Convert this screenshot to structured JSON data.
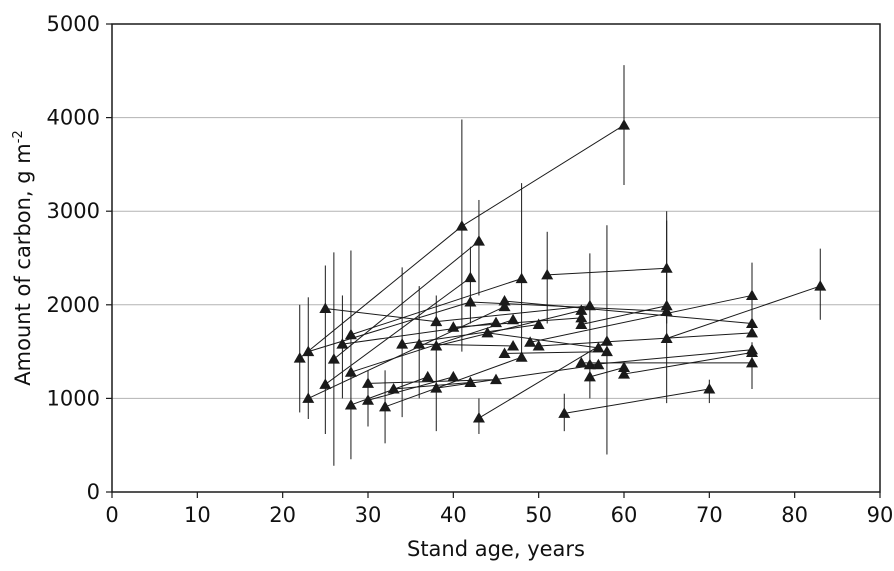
{
  "chart_data": {
    "type": "scatter",
    "title": "",
    "xlabel": "Stand age, years",
    "ylabel": "Amount of carbon, g m",
    "ylabel_superscript": "-2",
    "xlim": [
      0,
      90
    ],
    "ylim": [
      0,
      5000
    ],
    "x_ticks": [
      "0",
      "10",
      "20",
      "30",
      "40",
      "50",
      "60",
      "70",
      "80",
      "90"
    ],
    "y_ticks": [
      "0",
      "1000",
      "2000",
      "3000",
      "4000",
      "5000"
    ],
    "grid": "horizontal",
    "legend": "none",
    "marker": "triangle",
    "colors": {
      "marks": "#1a1a1a",
      "grid": "#b3b3b3",
      "background": "#ffffff"
    },
    "points": [
      {
        "x": 22,
        "y": 1430,
        "err_low": 850,
        "err_high": 2000
      },
      {
        "x": 23,
        "y": 1000,
        "err_low": 780,
        "err_high": 2080
      },
      {
        "x": 23,
        "y": 1500
      },
      {
        "x": 25,
        "y": 1960,
        "err_low": 620,
        "err_high": 2420
      },
      {
        "x": 25,
        "y": 1150
      },
      {
        "x": 26,
        "y": 1420,
        "err_low": 280,
        "err_high": 2560
      },
      {
        "x": 27,
        "y": 1580,
        "err_low": 1000,
        "err_high": 2100
      },
      {
        "x": 28,
        "y": 1680,
        "err_low": 350,
        "err_high": 2580
      },
      {
        "x": 28,
        "y": 1280
      },
      {
        "x": 28,
        "y": 930
      },
      {
        "x": 30,
        "y": 980,
        "err_low": 700,
        "err_high": 1300
      },
      {
        "x": 30,
        "y": 1160
      },
      {
        "x": 32,
        "y": 910,
        "err_low": 520,
        "err_high": 1300
      },
      {
        "x": 33,
        "y": 1100
      },
      {
        "x": 34,
        "y": 1580,
        "err_low": 800,
        "err_high": 2400
      },
      {
        "x": 36,
        "y": 1580,
        "err_low": 1000,
        "err_high": 2200
      },
      {
        "x": 37,
        "y": 1230
      },
      {
        "x": 38,
        "y": 1820,
        "err_low": 650,
        "err_high": 2100
      },
      {
        "x": 38,
        "y": 1560
      },
      {
        "x": 38,
        "y": 1110
      },
      {
        "x": 40,
        "y": 1760
      },
      {
        "x": 40,
        "y": 1230
      },
      {
        "x": 41,
        "y": 2840,
        "err_low": 1500,
        "err_high": 3980
      },
      {
        "x": 42,
        "y": 2290,
        "err_low": 1800,
        "err_high": 2620
      },
      {
        "x": 42,
        "y": 2030
      },
      {
        "x": 42,
        "y": 1170
      },
      {
        "x": 43,
        "y": 2680,
        "err_low": 2100,
        "err_high": 3120
      },
      {
        "x": 43,
        "y": 790,
        "err_low": 620,
        "err_high": 1000
      },
      {
        "x": 44,
        "y": 1700
      },
      {
        "x": 45,
        "y": 1810
      },
      {
        "x": 45,
        "y": 1200
      },
      {
        "x": 46,
        "y": 2040
      },
      {
        "x": 46,
        "y": 1980
      },
      {
        "x": 46,
        "y": 1480
      },
      {
        "x": 47,
        "y": 1840
      },
      {
        "x": 47,
        "y": 1560
      },
      {
        "x": 48,
        "y": 2280,
        "err_low": 1400,
        "err_high": 3300
      },
      {
        "x": 48,
        "y": 1440
      },
      {
        "x": 49,
        "y": 1600
      },
      {
        "x": 50,
        "y": 1790
      },
      {
        "x": 50,
        "y": 1560
      },
      {
        "x": 51,
        "y": 2320,
        "err_low": 1800,
        "err_high": 2780
      },
      {
        "x": 53,
        "y": 840,
        "err_low": 650,
        "err_high": 1050
      },
      {
        "x": 55,
        "y": 1940
      },
      {
        "x": 55,
        "y": 1860
      },
      {
        "x": 55,
        "y": 1790
      },
      {
        "x": 55,
        "y": 1380
      },
      {
        "x": 56,
        "y": 1990,
        "err_low": 1000,
        "err_high": 2550
      },
      {
        "x": 56,
        "y": 1360
      },
      {
        "x": 56,
        "y": 1230
      },
      {
        "x": 57,
        "y": 1540
      },
      {
        "x": 57,
        "y": 1360
      },
      {
        "x": 58,
        "y": 1610,
        "err_low": 400,
        "err_high": 2850
      },
      {
        "x": 58,
        "y": 1500
      },
      {
        "x": 60,
        "y": 3920,
        "err_low": 3280,
        "err_high": 4560
      },
      {
        "x": 60,
        "y": 1330
      },
      {
        "x": 60,
        "y": 1260
      },
      {
        "x": 65,
        "y": 2390,
        "err_low": 1800,
        "err_high": 2900
      },
      {
        "x": 65,
        "y": 1990
      },
      {
        "x": 65,
        "y": 1930
      },
      {
        "x": 65,
        "y": 1640,
        "err_low": 950,
        "err_high": 3000
      },
      {
        "x": 70,
        "y": 1100,
        "err_low": 950,
        "err_high": 1200
      },
      {
        "x": 75,
        "y": 2100,
        "err_low": 1850,
        "err_high": 2450
      },
      {
        "x": 75,
        "y": 1800
      },
      {
        "x": 75,
        "y": 1700
      },
      {
        "x": 75,
        "y": 1520
      },
      {
        "x": 75,
        "y": 1490
      },
      {
        "x": 75,
        "y": 1380,
        "err_low": 1100,
        "err_high": 1600
      },
      {
        "x": 83,
        "y": 2200,
        "err_low": 1840,
        "err_high": 2600
      }
    ],
    "segments": [
      [
        [
          23,
          1500
        ],
        [
          42,
          2030
        ]
      ],
      [
        [
          42,
          2030
        ],
        [
          65,
          1930
        ]
      ],
      [
        [
          22,
          1430
        ],
        [
          41,
          2840
        ]
      ],
      [
        [
          23,
          1000
        ],
        [
          46,
          1980
        ]
      ],
      [
        [
          25,
          1960
        ],
        [
          38,
          1820
        ]
      ],
      [
        [
          25,
          1150
        ],
        [
          42,
          2290
        ]
      ],
      [
        [
          26,
          1420
        ],
        [
          43,
          2680
        ]
      ],
      [
        [
          27,
          1580
        ],
        [
          45,
          1810
        ]
      ],
      [
        [
          28,
          1680
        ],
        [
          48,
          2280
        ]
      ],
      [
        [
          28,
          1280
        ],
        [
          47,
          1840
        ]
      ],
      [
        [
          28,
          930
        ],
        [
          37,
          1230
        ]
      ],
      [
        [
          30,
          980
        ],
        [
          40,
          1230
        ]
      ],
      [
        [
          30,
          1160
        ],
        [
          45,
          1200
        ]
      ],
      [
        [
          32,
          910
        ],
        [
          48,
          1440
        ]
      ],
      [
        [
          33,
          1100
        ],
        [
          42,
          1170
        ]
      ],
      [
        [
          34,
          1580
        ],
        [
          50,
          1790
        ]
      ],
      [
        [
          36,
          1580
        ],
        [
          47,
          1560
        ]
      ],
      [
        [
          38,
          1820
        ],
        [
          56,
          1990
        ]
      ],
      [
        [
          38,
          1560
        ],
        [
          55,
          1940
        ]
      ],
      [
        [
          38,
          1110
        ],
        [
          57,
          1360
        ]
      ],
      [
        [
          40,
          1760
        ],
        [
          55,
          1860
        ]
      ],
      [
        [
          41,
          2840
        ],
        [
          60,
          3920
        ]
      ],
      [
        [
          43,
          790
        ],
        [
          58,
          1610
        ]
      ],
      [
        [
          44,
          1700
        ],
        [
          57,
          1540
        ]
      ],
      [
        [
          46,
          2040
        ],
        [
          75,
          1800
        ]
      ],
      [
        [
          46,
          1480
        ],
        [
          58,
          1500
        ]
      ],
      [
        [
          49,
          1600
        ],
        [
          75,
          2100
        ]
      ],
      [
        [
          50,
          1560
        ],
        [
          75,
          1700
        ]
      ],
      [
        [
          51,
          2320
        ],
        [
          65,
          2390
        ]
      ],
      [
        [
          53,
          840
        ],
        [
          70,
          1100
        ]
      ],
      [
        [
          55,
          1790
        ],
        [
          65,
          1990
        ]
      ],
      [
        [
          55,
          1380
        ],
        [
          75,
          1380
        ]
      ],
      [
        [
          56,
          1360
        ],
        [
          75,
          1520
        ]
      ],
      [
        [
          56,
          1230
        ],
        [
          60,
          1330
        ]
      ],
      [
        [
          60,
          1260
        ],
        [
          75,
          1490
        ]
      ],
      [
        [
          65,
          1640
        ],
        [
          83,
          2200
        ]
      ]
    ]
  }
}
